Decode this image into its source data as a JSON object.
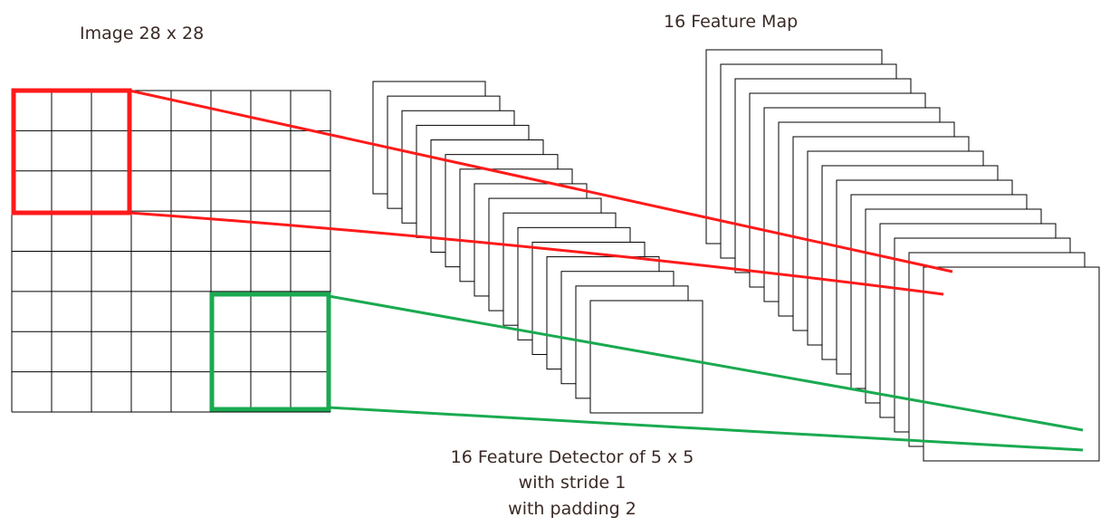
{
  "labels": {
    "image_title": "Image 28 x 28",
    "feature_map_title": "16 Feature Map",
    "detector_line1": "16 Feature Detector of 5 x 5",
    "detector_line2": "with stride 1",
    "detector_line3": "with padding 2"
  },
  "grid": {
    "columns": 8,
    "rows": 8
  },
  "feature_detector_stack": {
    "count": 16
  },
  "feature_map_stack": {
    "count": 16
  },
  "highlights": [
    {
      "name": "red-window",
      "color": "#ff1a1a"
    },
    {
      "name": "green-window",
      "color": "#1aaa50"
    }
  ],
  "colors": {
    "stroke": "#000000",
    "text": "#3a2a26"
  }
}
